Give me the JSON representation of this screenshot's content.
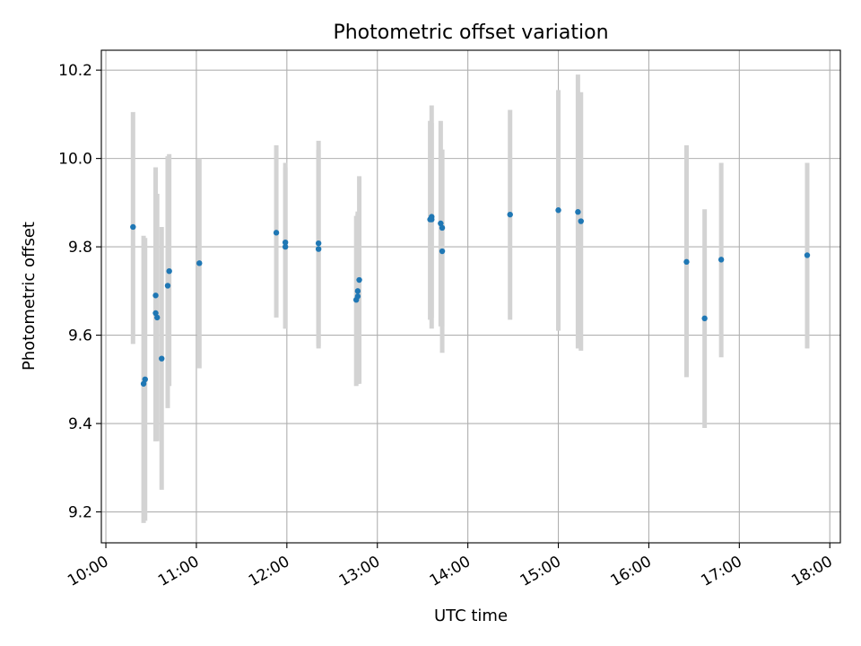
{
  "chart_data": {
    "type": "scatter",
    "title": "Photometric offset variation",
    "xlabel": "UTC time",
    "ylabel": "Photometric offset",
    "x_axis_type": "time",
    "xlim": [
      "09:57",
      "18:07"
    ],
    "ylim": [
      9.13,
      10.245
    ],
    "x_ticks": [
      "10:00",
      "11:00",
      "12:00",
      "13:00",
      "14:00",
      "15:00",
      "16:00",
      "17:00",
      "18:00"
    ],
    "y_ticks": [
      9.2,
      9.4,
      9.6,
      9.8,
      10.0,
      10.2
    ],
    "grid": true,
    "point_color": "#1f77b4",
    "errorbar_color": "#d3d3d3",
    "points": [
      {
        "x": "10:18",
        "y": 9.845,
        "ylo": 9.58,
        "yhi": 10.105
      },
      {
        "x": "10:25",
        "y": 9.49,
        "ylo": 9.175,
        "yhi": 9.825
      },
      {
        "x": "10:26",
        "y": 9.5,
        "ylo": 9.18,
        "yhi": 9.82
      },
      {
        "x": "10:33",
        "y": 9.69,
        "ylo": 9.36,
        "yhi": 9.98
      },
      {
        "x": "10:33",
        "y": 9.65,
        "ylo": 9.36,
        "yhi": 9.97
      },
      {
        "x": "10:34",
        "y": 9.64,
        "ylo": 9.36,
        "yhi": 9.92
      },
      {
        "x": "10:37",
        "y": 9.547,
        "ylo": 9.25,
        "yhi": 9.845
      },
      {
        "x": "10:41",
        "y": 9.712,
        "ylo": 9.435,
        "yhi": 10.005
      },
      {
        "x": "10:42",
        "y": 9.745,
        "ylo": 9.485,
        "yhi": 10.01
      },
      {
        "x": "11:02",
        "y": 9.763,
        "ylo": 9.525,
        "yhi": 10.0
      },
      {
        "x": "11:53",
        "y": 9.832,
        "ylo": 9.64,
        "yhi": 10.03
      },
      {
        "x": "11:59",
        "y": 9.81,
        "ylo": 9.615,
        "yhi": 9.99
      },
      {
        "x": "11:59",
        "y": 9.8,
        "ylo": 9.615,
        "yhi": 9.98
      },
      {
        "x": "12:21",
        "y": 9.808,
        "ylo": 9.57,
        "yhi": 10.04
      },
      {
        "x": "12:21",
        "y": 9.795,
        "ylo": 9.575,
        "yhi": 10.02
      },
      {
        "x": "12:46",
        "y": 9.68,
        "ylo": 9.485,
        "yhi": 9.87
      },
      {
        "x": "12:47",
        "y": 9.688,
        "ylo": 9.49,
        "yhi": 9.875
      },
      {
        "x": "12:47",
        "y": 9.7,
        "ylo": 9.49,
        "yhi": 9.88
      },
      {
        "x": "12:48",
        "y": 9.725,
        "ylo": 9.49,
        "yhi": 9.96
      },
      {
        "x": "13:35",
        "y": 9.862,
        "ylo": 9.635,
        "yhi": 10.085
      },
      {
        "x": "13:36",
        "y": 9.868,
        "ylo": 9.615,
        "yhi": 10.12
      },
      {
        "x": "13:36",
        "y": 9.862,
        "ylo": 9.64,
        "yhi": 10.08
      },
      {
        "x": "13:42",
        "y": 9.853,
        "ylo": 9.62,
        "yhi": 10.085
      },
      {
        "x": "13:43",
        "y": 9.843,
        "ylo": 9.62,
        "yhi": 10.02
      },
      {
        "x": "13:43",
        "y": 9.79,
        "ylo": 9.56,
        "yhi": 10.02
      },
      {
        "x": "14:28",
        "y": 9.873,
        "ylo": 9.635,
        "yhi": 10.11
      },
      {
        "x": "15:00",
        "y": 9.883,
        "ylo": 9.61,
        "yhi": 10.155
      },
      {
        "x": "15:13",
        "y": 9.879,
        "ylo": 9.57,
        "yhi": 10.19
      },
      {
        "x": "15:15",
        "y": 9.858,
        "ylo": 9.565,
        "yhi": 10.15
      },
      {
        "x": "16:25",
        "y": 9.766,
        "ylo": 9.505,
        "yhi": 10.03
      },
      {
        "x": "16:37",
        "y": 9.638,
        "ylo": 9.39,
        "yhi": 9.885
      },
      {
        "x": "16:48",
        "y": 9.771,
        "ylo": 9.55,
        "yhi": 9.99
      },
      {
        "x": "17:45",
        "y": 9.781,
        "ylo": 9.57,
        "yhi": 9.99
      }
    ]
  }
}
